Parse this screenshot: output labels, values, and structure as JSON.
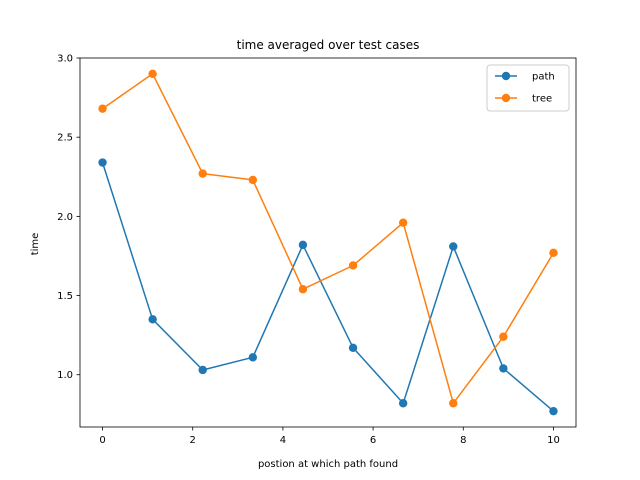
{
  "chart_data": {
    "type": "line",
    "title": "time averaged over test cases",
    "xlabel": "postion at which path found",
    "ylabel": "time",
    "xlim": [
      -0.5,
      10.5
    ],
    "ylim": [
      0.67,
      3.0
    ],
    "xticks": [
      "0",
      "2",
      "4",
      "6",
      "8",
      "10"
    ],
    "yticks": [
      "1.0",
      "1.5",
      "2.0",
      "2.5",
      "3.0"
    ],
    "grid": false,
    "legend_position": "top-right",
    "x": [
      0,
      1.111,
      2.222,
      3.333,
      4.444,
      5.556,
      6.667,
      7.778,
      8.889,
      10
    ],
    "series": [
      {
        "name": "path",
        "color": "#1f77b4",
        "marker": "circle",
        "values": [
          2.34,
          1.35,
          1.03,
          1.11,
          1.82,
          1.17,
          0.82,
          1.81,
          1.04,
          0.77
        ]
      },
      {
        "name": "tree",
        "color": "#ff7f0e",
        "marker": "circle",
        "values": [
          2.68,
          2.9,
          2.27,
          2.23,
          1.54,
          1.69,
          1.96,
          0.82,
          1.24,
          1.77
        ]
      }
    ]
  }
}
